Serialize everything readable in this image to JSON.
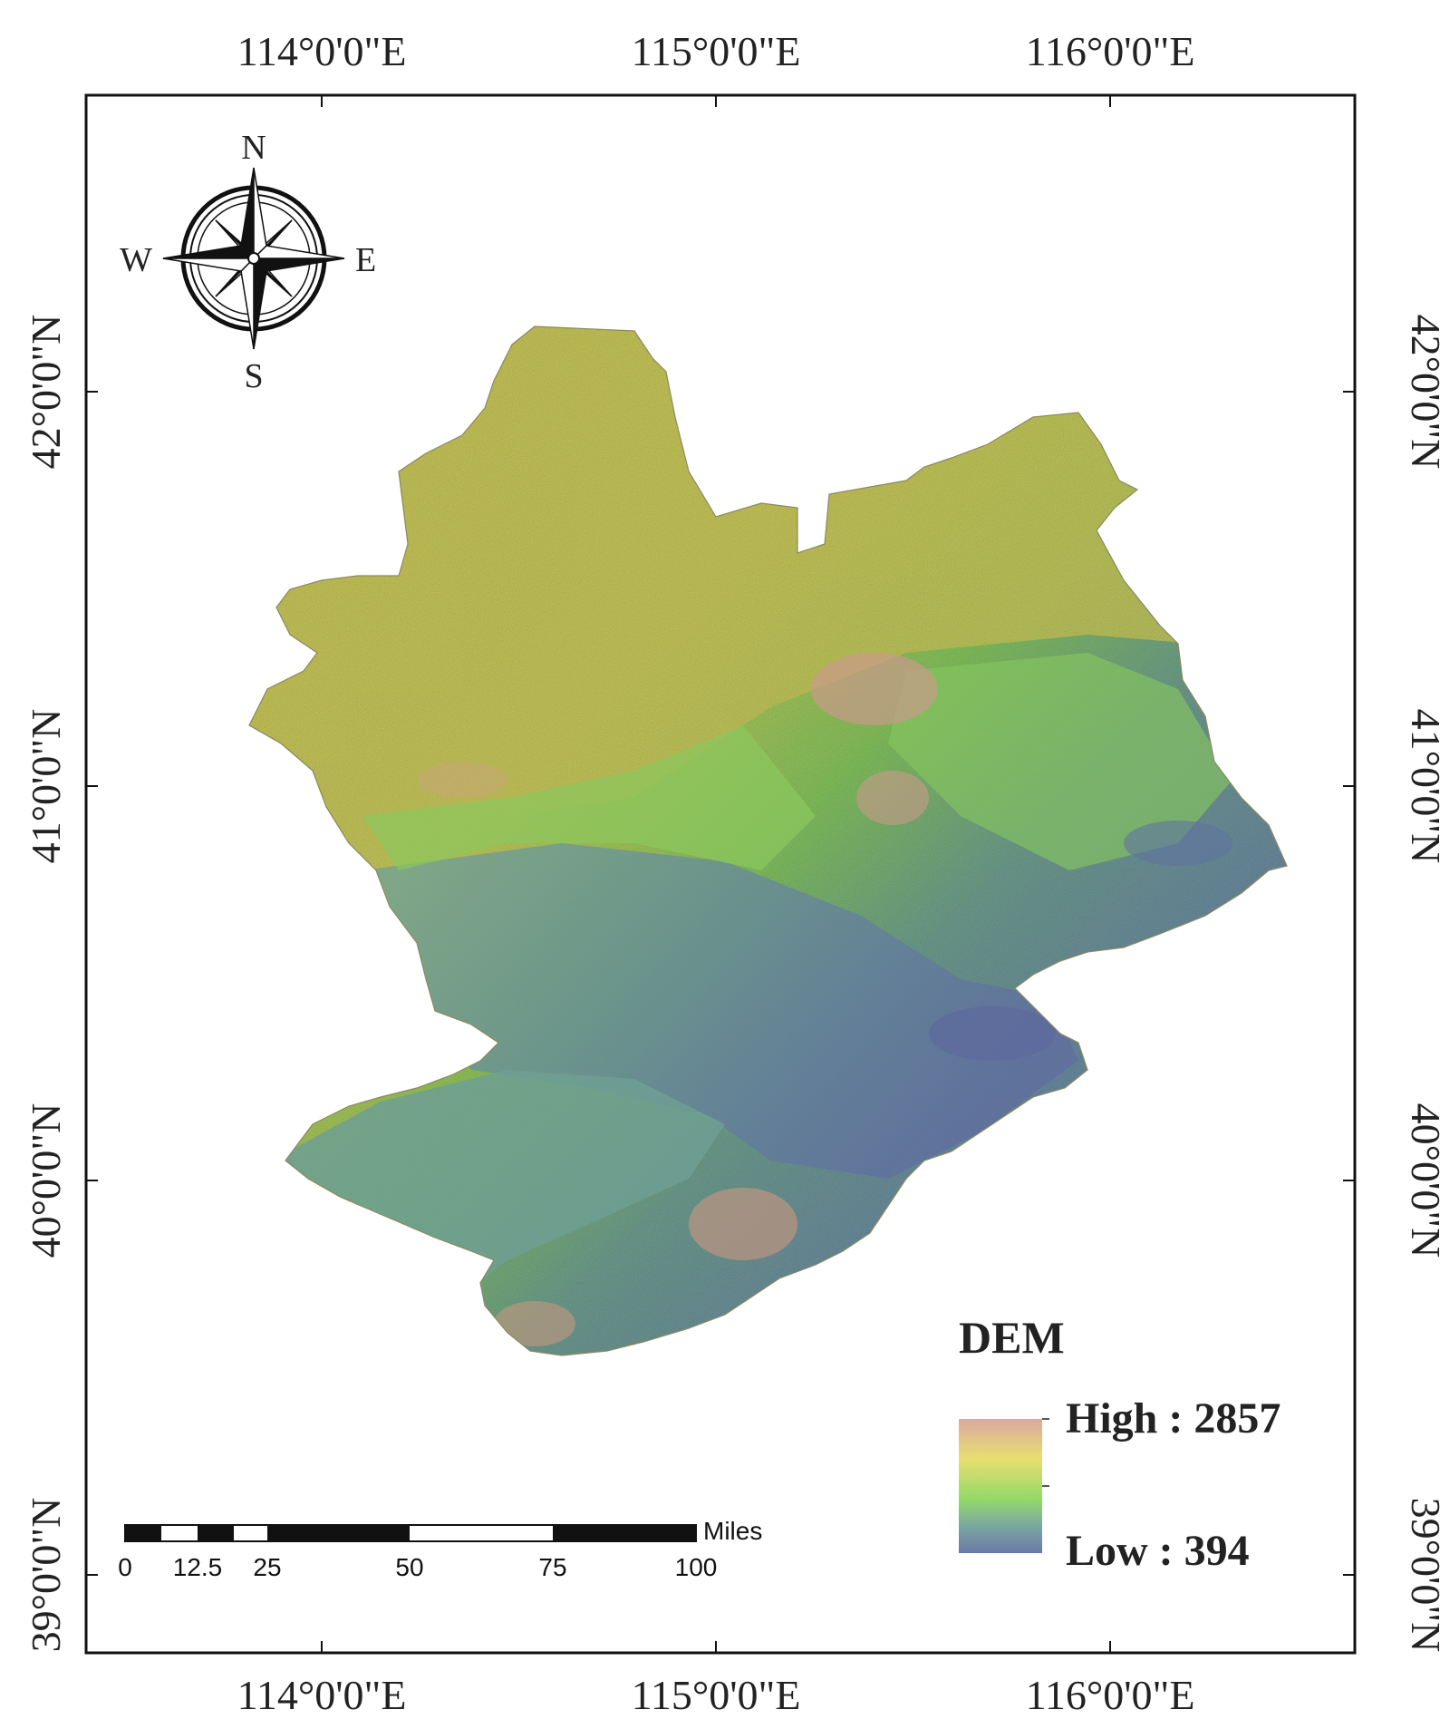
{
  "map": {
    "type": "dem-map",
    "top_ticks": [
      "114°0'0\"E",
      "115°0'0\"E",
      "116°0'0\"E"
    ],
    "bottom_ticks": [
      "114°0'0\"E",
      "115°0'0\"E",
      "116°0'0\"E"
    ],
    "left_ticks": [
      "42°0'0\"N",
      "41°0'0\"N",
      "40°0'0\"N",
      "39°0'0\"N"
    ],
    "right_ticks": [
      "42°0'0\"N",
      "41°0'0\"N",
      "40°0'0\"N",
      "39°0'0\"N"
    ]
  },
  "compass": {
    "n": "N",
    "s": "S",
    "e": "E",
    "w": "W"
  },
  "legend": {
    "title": "DEM",
    "high_label": "High : 2857",
    "low_label": "Low : 394",
    "colors": [
      "#dca8a0",
      "#e7df6f",
      "#93d96a",
      "#7ba6a2",
      "#6a7aa6"
    ]
  },
  "scale_bar": {
    "unit": "Miles",
    "labels": [
      "0",
      "12.5",
      "25",
      "50",
      "75",
      "100"
    ]
  }
}
